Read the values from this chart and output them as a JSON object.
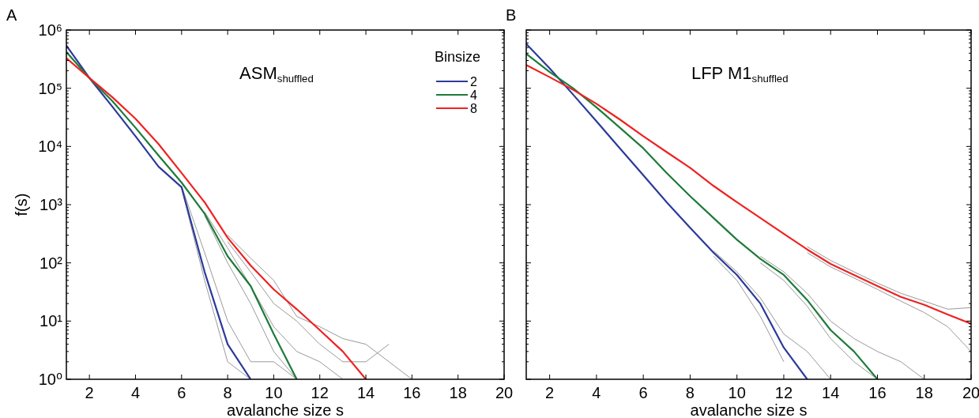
{
  "chart_data": [
    {
      "type": "line",
      "title": "A",
      "xlabel": "avalanche size s",
      "ylabel": "f(s)",
      "annotations": [
        "ASM$_{shuffled}$"
      ],
      "x": [
        1,
        2,
        3,
        4,
        5,
        6,
        7,
        8,
        9,
        10,
        11,
        12,
        13,
        14,
        15,
        16
      ],
      "xlim": [
        1,
        20
      ],
      "xticks": [
        2,
        4,
        6,
        8,
        10,
        12,
        14,
        16,
        18,
        20
      ],
      "ylim": [
        1,
        1000000
      ],
      "yticks": [
        {
          "value": 1,
          "label": "10⁰"
        },
        {
          "value": 10,
          "label": "10¹"
        },
        {
          "value": 100,
          "label": "10²"
        },
        {
          "value": 1000,
          "label": "10³"
        },
        {
          "value": 10000,
          "label": "10⁴"
        },
        {
          "value": 100000,
          "label": "10⁵"
        },
        {
          "value": 1000000,
          "label": "10⁶"
        }
      ],
      "log": "y",
      "legend": "top right",
      "legend_title": "Binsize",
      "series": [
        {
          "color": "#999999",
          "values": [
            null,
            null,
            null,
            null,
            null,
            2100,
            150,
            10,
            2,
            2,
            1,
            null,
            null,
            null,
            null,
            null
          ]
        },
        {
          "color": "#999999",
          "values": [
            null,
            null,
            null,
            null,
            null,
            1900,
            50,
            2,
            1,
            null,
            null,
            null,
            null,
            null,
            null,
            null
          ]
        },
        {
          "color": "#999999",
          "values": [
            null,
            null,
            null,
            null,
            null,
            null,
            750,
            180,
            40,
            8,
            3,
            2,
            1,
            null,
            null,
            null
          ]
        },
        {
          "color": "#999999",
          "values": [
            null,
            null,
            null,
            null,
            null,
            null,
            650,
            100,
            20,
            3,
            1,
            null,
            null,
            null,
            null,
            null
          ]
        },
        {
          "color": "#999999",
          "values": [
            null,
            null,
            null,
            null,
            null,
            null,
            null,
            300,
            120,
            50,
            12,
            8,
            5,
            4,
            2,
            1
          ]
        },
        {
          "color": "#999999",
          "values": [
            null,
            null,
            null,
            null,
            null,
            null,
            null,
            230,
            70,
            20,
            10,
            4,
            2,
            2,
            4,
            null
          ]
        },
        {
          "name": "2",
          "color": "#2b3a9a",
          "values": [
            540000,
            150000,
            48000,
            15000,
            4500,
            2000,
            70,
            4,
            1,
            null,
            null,
            null,
            null,
            null,
            null,
            null
          ]
        },
        {
          "name": "4",
          "color": "#1e7b3a",
          "values": [
            420000,
            150000,
            60000,
            21000,
            7000,
            2400,
            700,
            130,
            40,
            6,
            1,
            null,
            null,
            null,
            null,
            null
          ]
        },
        {
          "name": "8",
          "color": "#ee2222",
          "values": [
            330000,
            150000,
            70000,
            30000,
            11000,
            3500,
            1100,
            270,
            90,
            35,
            16,
            7,
            3,
            1,
            null,
            null
          ]
        }
      ]
    },
    {
      "type": "line",
      "title": "B",
      "xlabel": "avalanche size s",
      "annotations": [
        "LFP M1$_{shuffled}$"
      ],
      "x": [
        1,
        2,
        3,
        4,
        5,
        6,
        7,
        8,
        9,
        10,
        11,
        12,
        13,
        14,
        15,
        16,
        17,
        18,
        19,
        20
      ],
      "xlim": [
        1,
        20
      ],
      "xticks": [
        2,
        4,
        6,
        8,
        10,
        12,
        14,
        16,
        18,
        20
      ],
      "ylim": [
        1,
        1000000
      ],
      "yticks": [
        {
          "value": 1,
          "label": null
        },
        {
          "value": 10,
          "label": null
        },
        {
          "value": 100,
          "label": null
        },
        {
          "value": 1000,
          "label": null
        },
        {
          "value": 10000,
          "label": null
        },
        {
          "value": 100000,
          "label": null
        },
        {
          "value": 1000000,
          "label": null
        }
      ],
      "log": "y",
      "tick_labels": "x",
      "series": [
        {
          "color": "#999999",
          "values": [
            null,
            null,
            null,
            null,
            null,
            null,
            null,
            null,
            160,
            70,
            25,
            6,
            3,
            1,
            null,
            null,
            null,
            null,
            null,
            null
          ]
        },
        {
          "color": "#999999",
          "values": [
            null,
            null,
            null,
            null,
            null,
            null,
            null,
            null,
            130,
            50,
            12,
            2,
            null,
            null,
            null,
            null,
            null,
            null,
            null,
            null
          ]
        },
        {
          "color": "#999999",
          "values": [
            null,
            null,
            null,
            null,
            null,
            null,
            null,
            null,
            null,
            null,
            130,
            70,
            30,
            10,
            5,
            3,
            2,
            1,
            null,
            null
          ]
        },
        {
          "color": "#999999",
          "values": [
            null,
            null,
            null,
            null,
            null,
            null,
            null,
            null,
            null,
            null,
            100,
            50,
            18,
            5,
            2,
            1,
            null,
            null,
            null,
            null
          ]
        },
        {
          "color": "#999999",
          "values": [
            null,
            null,
            null,
            null,
            null,
            null,
            null,
            null,
            null,
            null,
            null,
            null,
            190,
            110,
            70,
            45,
            30,
            22,
            16,
            17
          ]
        },
        {
          "color": "#999999",
          "values": [
            null,
            null,
            null,
            null,
            null,
            null,
            null,
            null,
            null,
            null,
            null,
            null,
            150,
            85,
            55,
            35,
            22,
            14,
            8,
            3
          ]
        },
        {
          "color": "#2b3a9a",
          "values": [
            580000,
            220000,
            78000,
            27000,
            9300,
            3200,
            1100,
            400,
            150,
            62,
            20,
            3.5,
            1,
            null,
            null,
            null,
            null,
            null,
            null,
            null
          ]
        },
        {
          "color": "#1e7b3a",
          "values": [
            390000,
            190000,
            100000,
            47000,
            21000,
            9300,
            3500,
            1400,
            590,
            250,
            117,
            62,
            23,
            7,
            3,
            1,
            null,
            null,
            null,
            null
          ]
        },
        {
          "color": "#ee2222",
          "values": [
            250000,
            155000,
            94000,
            54000,
            29000,
            15000,
            8000,
            4300,
            2100,
            1100,
            590,
            316,
            170,
            96,
            62,
            40,
            26,
            19,
            13,
            9
          ]
        }
      ]
    }
  ]
}
